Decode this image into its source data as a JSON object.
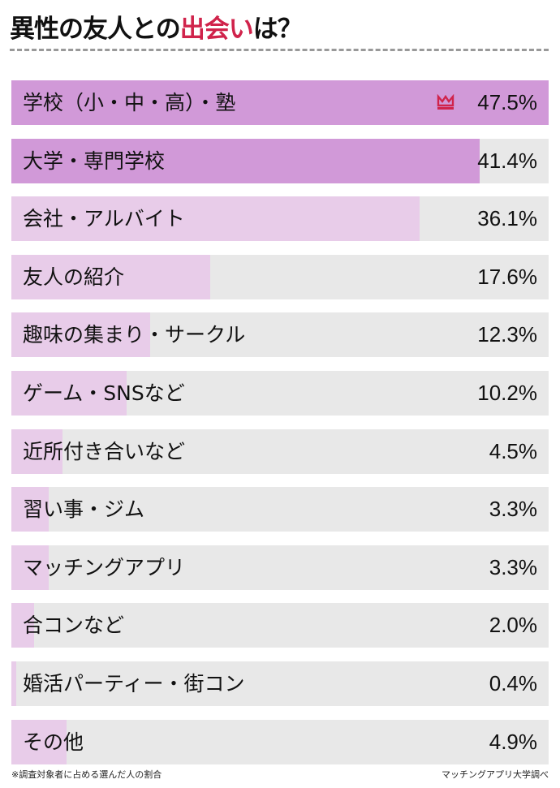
{
  "title": {
    "prefix": "異性の友人との",
    "highlight": "出会い",
    "suffix": "は？"
  },
  "colors": {
    "top": "#d199d8",
    "other": "#e8cce9",
    "track": "#e8e8e8",
    "accent": "#d0234b"
  },
  "chart_data": {
    "type": "bar",
    "orientation": "horizontal",
    "categories": [
      "学校（小・中・高）・塾",
      "大学・専門学校",
      "会社・アルバイト",
      "友人の紹介",
      "趣味の集まり・サークル",
      "ゲーム・SNSなど",
      "近所付き合いなど",
      "習い事・ジム",
      "マッチングアプリ",
      "合コンなど",
      "婚活パーティー・街コン",
      "その他"
    ],
    "values": [
      47.5,
      41.4,
      36.1,
      17.6,
      12.3,
      10.2,
      4.5,
      3.3,
      3.3,
      2.0,
      0.4,
      4.9
    ],
    "value_labels": [
      "47.5%",
      "41.4%",
      "36.1%",
      "17.6%",
      "12.3%",
      "10.2%",
      "4.5%",
      "3.3%",
      "3.3%",
      "2.0%",
      "0.4%",
      "4.9%"
    ],
    "xlim": [
      0,
      47.5
    ],
    "highlighted_top": 2,
    "top_icon": "crown-icon"
  },
  "footer": {
    "note": "※調査対象者に占める選んだ人の割合",
    "source": "マッチングアプリ大学調べ"
  }
}
